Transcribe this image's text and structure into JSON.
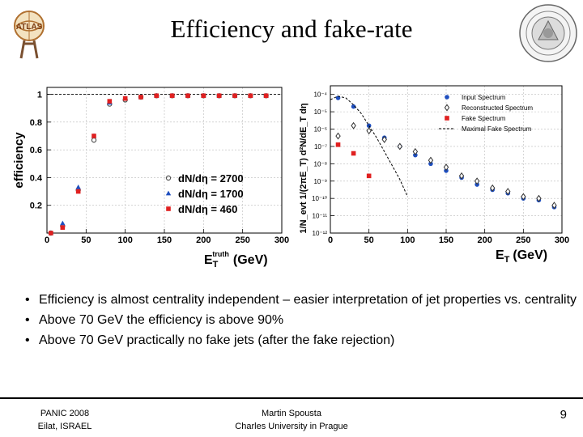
{
  "slide": {
    "title": "Efficiency and fake-rate",
    "bullets": [
      "Efficiency is almost centrality independent – easier interpretation of  jet properties vs. centrality",
      "Above 70 GeV the efficiency is above 90%",
      "Above 70 GeV practically no fake jets (after the fake rejection)"
    ],
    "footer": {
      "left_line1": "PANIC 2008",
      "left_line2": "Eilat, ISRAEL",
      "center_line1": "Martin Spousta",
      "center_line2": "Charles University in Prague",
      "page_number": "9"
    },
    "logo_left_text": "ATLAS"
  },
  "chart_data": [
    {
      "type": "scatter",
      "xlabel_main": "E",
      "xlabel_sub": "T",
      "xlabel_sup": "truth",
      "xlabel_unit": "(GeV)",
      "ylabel": "efficiency",
      "xlim": [
        0,
        300
      ],
      "ylim": [
        0,
        1.05
      ],
      "x_ticks": [
        0,
        50,
        100,
        150,
        200,
        250,
        300
      ],
      "y_ticks": [
        0.2,
        0.4,
        0.6,
        0.8,
        1
      ],
      "reference_line": 1,
      "legend_position": "bottom-right",
      "series": [
        {
          "name": "dN/dη = 2700",
          "marker": "open-circle",
          "color": "#555555",
          "x": [
            5,
            20,
            40,
            60,
            80,
            100,
            120,
            140,
            160,
            180,
            200,
            220,
            240,
            260,
            280
          ],
          "y": [
            0.0,
            0.05,
            0.31,
            0.67,
            0.93,
            0.96,
            0.98,
            0.99,
            0.99,
            0.99,
            0.99,
            0.99,
            0.99,
            0.99,
            0.99
          ]
        },
        {
          "name": "dN/dη = 1700",
          "marker": "triangle",
          "color": "#1f4fbf",
          "x": [
            5,
            20,
            40,
            60,
            80,
            100,
            120,
            140,
            160,
            180,
            200,
            220,
            240,
            260,
            280
          ],
          "y": [
            0.0,
            0.07,
            0.33,
            0.7,
            0.94,
            0.97,
            0.98,
            0.99,
            0.99,
            0.99,
            0.99,
            0.99,
            0.99,
            0.99,
            0.99
          ]
        },
        {
          "name": "dN/dη = 460",
          "marker": "square",
          "color": "#e02020",
          "x": [
            5,
            20,
            40,
            60,
            80,
            100,
            120,
            140,
            160,
            180,
            200,
            220,
            240,
            260,
            280
          ],
          "y": [
            0.0,
            0.04,
            0.3,
            0.7,
            0.95,
            0.97,
            0.98,
            0.99,
            0.99,
            0.99,
            0.99,
            0.99,
            0.99,
            0.99,
            0.99
          ]
        }
      ]
    },
    {
      "type": "scatter",
      "y_log": true,
      "xlabel_main": "E",
      "xlabel_sub": "T",
      "xlabel_unit": "(GeV)",
      "ylabel": "1/N_evt 1/(2πE_T) d²N/dE_T dη",
      "xlim": [
        0,
        300
      ],
      "ylim_exp": [
        -12,
        -3.5
      ],
      "x_ticks": [
        0,
        50,
        100,
        150,
        200,
        250,
        300
      ],
      "y_tick_labels": [
        "10⁻⁴",
        "10⁻⁵",
        "10⁻⁶",
        "10⁻⁷",
        "10⁻⁸",
        "10⁻⁹",
        "10⁻¹⁰",
        "10⁻¹¹",
        "10⁻¹²"
      ],
      "y_tick_exps": [
        -4,
        -5,
        -6,
        -7,
        -8,
        -9,
        -10,
        -11,
        -12
      ],
      "legend_position": "top-right",
      "series": [
        {
          "name": "Input Spectrum",
          "marker": "filled-circle",
          "color": "#1f4fbf",
          "x": [
            10,
            30,
            50,
            70,
            90,
            110,
            130,
            150,
            170,
            190,
            210,
            230,
            250,
            270,
            290
          ],
          "log_y": [
            -4.2,
            -4.7,
            -5.8,
            -6.5,
            -7.0,
            -7.5,
            -8.0,
            -8.4,
            -8.8,
            -9.2,
            -9.5,
            -9.7,
            -10.0,
            -10.1,
            -10.5
          ]
        },
        {
          "name": "Reconstructed Spectrum",
          "marker": "open-diamond",
          "color": "#333333",
          "x": [
            10,
            30,
            50,
            70,
            90,
            110,
            130,
            150,
            170,
            190,
            210,
            230,
            250,
            270,
            290
          ],
          "log_y": [
            -6.4,
            -5.8,
            -6.1,
            -6.6,
            -7.0,
            -7.3,
            -7.8,
            -8.2,
            -8.7,
            -9.0,
            -9.4,
            -9.6,
            -9.9,
            -10.0,
            -10.4
          ]
        },
        {
          "name": "Fake Spectrum",
          "marker": "square",
          "color": "#e02020",
          "x": [
            10,
            30,
            50
          ],
          "log_y": [
            -6.9,
            -7.4,
            -8.7
          ]
        },
        {
          "name": "Maximal Fake Spectrum",
          "marker": "dashed-line",
          "color": "#000000",
          "x": [
            0,
            10,
            20,
            30,
            40,
            50,
            60,
            70,
            80,
            90,
            100
          ],
          "log_y": [
            -4.3,
            -4.1,
            -4.2,
            -4.6,
            -5.1,
            -5.8,
            -6.5,
            -7.3,
            -8.1,
            -8.9,
            -9.9
          ]
        }
      ]
    }
  ],
  "colors": {
    "accent_blue": "#1f4fbf",
    "accent_red": "#e02020",
    "open_marker": "#555555"
  }
}
